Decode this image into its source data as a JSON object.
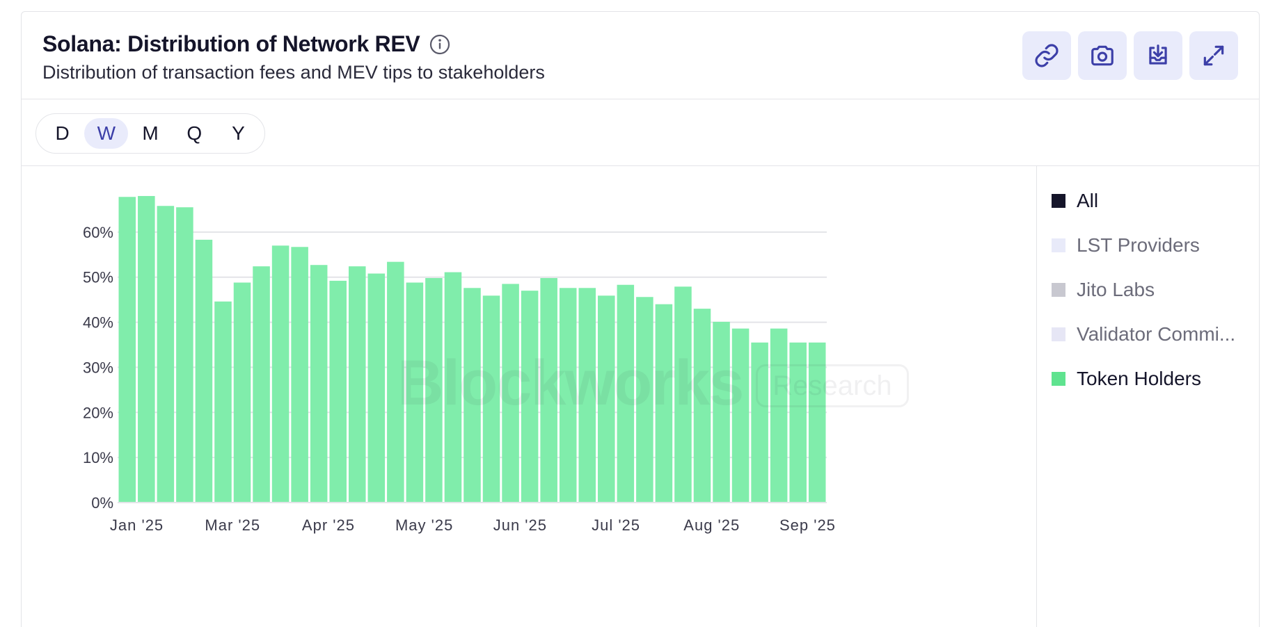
{
  "header": {
    "title": "Solana: Distribution of Network REV",
    "subtitle": "Distribution of transaction fees and MEV tips to stakeholders",
    "info_icon": "info-icon"
  },
  "toolbar": {
    "buttons": [
      {
        "icon": "link-icon"
      },
      {
        "icon": "camera-icon"
      },
      {
        "icon": "download-icon"
      },
      {
        "icon": "expand-icon"
      }
    ]
  },
  "periods": {
    "options": [
      "D",
      "W",
      "M",
      "Q",
      "Y"
    ],
    "selected": "W"
  },
  "watermark": {
    "brand": "Blockworks",
    "badge": "Research"
  },
  "legend": {
    "items": [
      {
        "label": "All",
        "color": "#15152a",
        "state": "on"
      },
      {
        "label": "LST Providers",
        "color": "#e8eaf9",
        "state": "muted"
      },
      {
        "label": "Jito Labs",
        "color": "#c8c8d0",
        "state": "muted"
      },
      {
        "label": "Validator Commi...",
        "color": "#e6e6f5",
        "state": "muted"
      },
      {
        "label": "Token Holders",
        "color": "#5fe38f",
        "state": "on"
      }
    ]
  },
  "chart_data": {
    "type": "bar",
    "title": "Solana: Distribution of Network REV",
    "subtitle": "Distribution of transaction fees and MEV tips to stakeholders",
    "xlabel": "",
    "ylabel": "",
    "ylim": [
      0,
      70
    ],
    "yticks": [
      0,
      10,
      20,
      30,
      40,
      50,
      60
    ],
    "ytick_suffix": "%",
    "grid": true,
    "legend_position": "right",
    "bar_color": "#80edab",
    "x_tick_labels": [
      {
        "label": "Jan '25",
        "index": 1
      },
      {
        "label": "Mar '25",
        "index": 6
      },
      {
        "label": "Apr '25",
        "index": 11
      },
      {
        "label": "May '25",
        "index": 16
      },
      {
        "label": "Jun '25",
        "index": 21
      },
      {
        "label": "Jul '25",
        "index": 26
      },
      {
        "label": "Aug '25",
        "index": 31
      },
      {
        "label": "Sep '25",
        "index": 36
      }
    ],
    "series": [
      {
        "name": "Token Holders",
        "values": [
          67.8,
          68.0,
          65.8,
          65.5,
          58.3,
          44.6,
          48.8,
          52.4,
          57.0,
          56.7,
          52.7,
          49.2,
          52.4,
          50.8,
          53.4,
          48.8,
          49.8,
          51.1,
          47.6,
          45.9,
          48.5,
          47.0,
          49.8,
          47.6,
          47.6,
          45.9,
          48.3,
          45.6,
          44.0,
          47.9,
          43.0,
          40.1,
          38.6,
          35.5,
          38.6,
          35.5,
          35.5
        ]
      }
    ]
  }
}
